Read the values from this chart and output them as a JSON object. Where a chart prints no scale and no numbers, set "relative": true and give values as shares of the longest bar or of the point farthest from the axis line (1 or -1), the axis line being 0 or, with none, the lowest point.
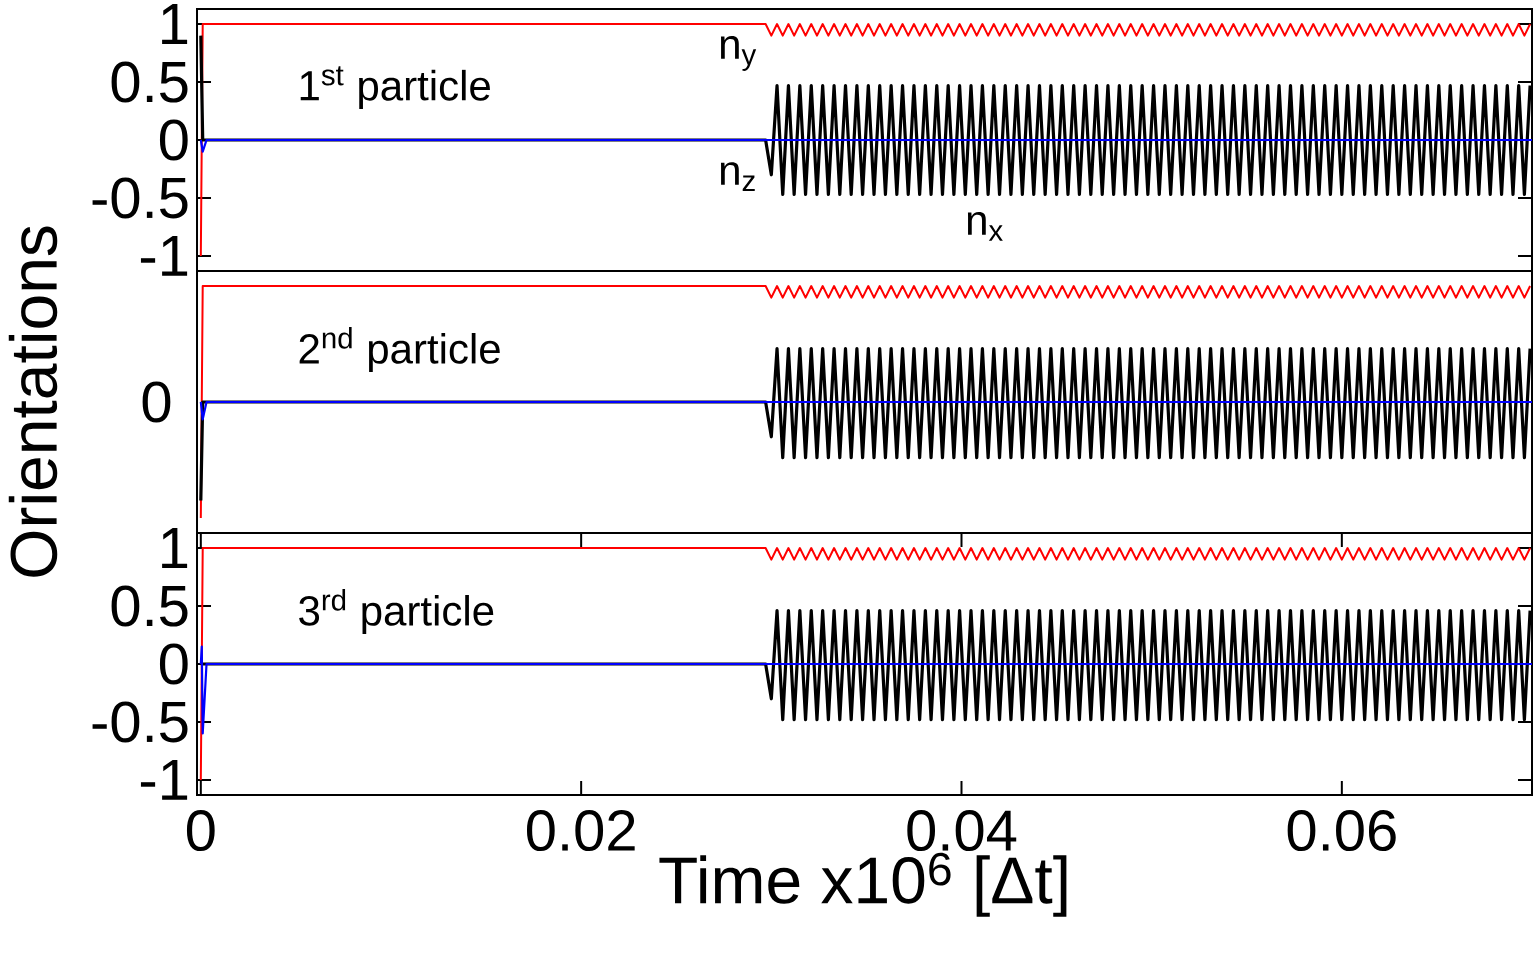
{
  "chart_data": [
    {
      "type": "line",
      "annotations": [
        "1$^{st}$ particle"
      ],
      "xlim": [
        -0.0002,
        0.07
      ],
      "ylim": [
        -1.13,
        1.13
      ],
      "yticks": [
        -1,
        -0.5,
        0,
        0.5,
        1
      ],
      "tick_labels": "y",
      "x": [
        0,
        0.0001,
        0.0003,
        0.0008,
        0.01,
        0.02,
        0.0297,
        0.03,
        0.0303,
        0.0306,
        0.0309,
        0.0312,
        0.0315,
        0.0318,
        0.0321,
        0.0324,
        0.0327,
        0.033,
        0.0333,
        0.0336,
        0.0339,
        0.0342,
        0.0345,
        0.0348,
        0.0351,
        0.0354,
        0.0357,
        0.036,
        0.0363,
        0.0366,
        0.0369,
        0.0372,
        0.0375,
        0.0378,
        0.0381,
        0.0384,
        0.0387,
        0.039,
        0.0393,
        0.0396,
        0.0399,
        0.0402,
        0.0405,
        0.0408,
        0.0411,
        0.0414,
        0.0417,
        0.042,
        0.0423,
        0.0426,
        0.0429,
        0.0432,
        0.0435,
        0.0438,
        0.0441,
        0.0444,
        0.0447,
        0.045,
        0.0453,
        0.0456,
        0.0459,
        0.0462,
        0.0465,
        0.0468,
        0.0471,
        0.0474,
        0.0477,
        0.048,
        0.0483,
        0.0486,
        0.0489,
        0.0492,
        0.0495,
        0.0498,
        0.0501,
        0.0504,
        0.0507,
        0.051,
        0.0513,
        0.0516,
        0.0519,
        0.0522,
        0.0525,
        0.0528,
        0.0531,
        0.0534,
        0.0537,
        0.054,
        0.0543,
        0.0546,
        0.0549,
        0.0552,
        0.0555,
        0.0558,
        0.0561,
        0.0564,
        0.0567,
        0.057,
        0.0573,
        0.0576,
        0.0579,
        0.0582,
        0.0585,
        0.0588,
        0.0591,
        0.0594,
        0.0597,
        0.06,
        0.0603,
        0.0606,
        0.0609,
        0.0612,
        0.0615,
        0.0618,
        0.0621,
        0.0624,
        0.0627,
        0.063,
        0.0633,
        0.0636,
        0.0639,
        0.0642,
        0.0645,
        0.0648,
        0.0651,
        0.0654,
        0.0657,
        0.066,
        0.0663,
        0.0666,
        0.0669,
        0.0672,
        0.0675,
        0.0678,
        0.0681,
        0.0684,
        0.0687,
        0.069,
        0.0693,
        0.0696,
        0.0699
      ],
      "series": [
        {
          "name": "n$_{y}$",
          "color": "#ff0000",
          "values": [
            -1,
            1,
            1,
            1,
            1,
            1,
            1,
            0.9,
            1,
            0.9,
            1,
            0.9,
            1,
            0.9,
            1,
            0.9,
            1,
            0.9,
            1,
            0.9,
            1,
            0.9,
            1,
            0.9,
            1,
            0.9,
            1,
            0.9,
            1,
            0.9,
            1,
            0.9,
            1,
            0.9,
            1,
            0.9,
            1,
            0.9,
            1,
            0.9,
            1,
            0.9,
            1,
            0.9,
            1,
            0.9,
            1,
            0.9,
            1,
            0.9,
            1,
            0.9,
            1,
            0.9,
            1,
            0.9,
            1,
            0.9,
            1,
            0.9,
            1,
            0.9,
            1,
            0.9,
            1,
            0.9,
            1,
            0.9,
            1,
            0.9,
            1,
            0.9,
            1,
            0.9,
            1,
            0.9,
            1,
            0.9,
            1,
            0.9,
            1,
            0.9,
            1,
            0.9,
            1,
            0.9,
            1,
            0.9,
            1,
            0.9,
            1,
            0.9,
            1,
            0.9,
            1,
            0.9,
            1,
            0.9,
            1,
            0.9,
            1,
            0.9,
            1,
            0.9,
            1,
            0.9,
            1,
            0.9,
            1,
            0.9,
            1,
            0.9,
            1,
            0.9,
            1,
            0.9,
            1,
            0.9,
            1,
            0.9,
            1,
            0.9,
            1,
            0.9,
            1,
            0.9,
            1,
            0.9,
            1,
            0.9,
            1,
            0.9,
            1,
            0.9,
            1,
            0.9,
            1,
            0.9,
            1,
            0.9,
            1
          ]
        },
        {
          "name": "n$_{x}$",
          "color": "#000000",
          "values": [
            0.9,
            0,
            0,
            0,
            0,
            0,
            0,
            -0.3,
            0.47,
            -0.47,
            0.47,
            -0.47,
            0.47,
            -0.47,
            0.47,
            -0.47,
            0.47,
            -0.47,
            0.47,
            -0.47,
            0.47,
            -0.47,
            0.47,
            -0.47,
            0.47,
            -0.47,
            0.47,
            -0.47,
            0.47,
            -0.47,
            0.47,
            -0.47,
            0.47,
            -0.47,
            0.47,
            -0.47,
            0.47,
            -0.47,
            0.47,
            -0.47,
            0.47,
            -0.47,
            0.47,
            -0.47,
            0.47,
            -0.47,
            0.47,
            -0.47,
            0.47,
            -0.47,
            0.47,
            -0.47,
            0.47,
            -0.47,
            0.47,
            -0.47,
            0.47,
            -0.47,
            0.47,
            -0.47,
            0.47,
            -0.47,
            0.47,
            -0.47,
            0.47,
            -0.47,
            0.47,
            -0.47,
            0.47,
            -0.47,
            0.47,
            -0.47,
            0.47,
            -0.47,
            0.47,
            -0.47,
            0.47,
            -0.47,
            0.47,
            -0.47,
            0.47,
            -0.47,
            0.47,
            -0.47,
            0.47,
            -0.47,
            0.47,
            -0.47,
            0.47,
            -0.47,
            0.47,
            -0.47,
            0.47,
            -0.47,
            0.47,
            -0.47,
            0.47,
            -0.47,
            0.47,
            -0.47,
            0.47,
            -0.47,
            0.47,
            -0.47,
            0.47,
            -0.47,
            0.47,
            -0.47,
            0.47,
            -0.47,
            0.47,
            -0.47,
            0.47,
            -0.47,
            0.47,
            -0.47,
            0.47,
            -0.47,
            0.47,
            -0.47,
            0.47,
            -0.47,
            0.47,
            -0.47,
            0.47,
            -0.47,
            0.47,
            -0.47,
            0.47,
            -0.47,
            0.47,
            -0.47,
            0.47,
            -0.47,
            0.47,
            -0.47,
            0.47,
            -0.47,
            0.47,
            -0.47,
            0.47
          ]
        },
        {
          "name": "n$_{z}$",
          "color": "#0000ff",
          "x": [
            0,
            0.0001,
            0.0003,
            0.07
          ],
          "values": [
            0,
            -0.1,
            0,
            0
          ]
        }
      ]
    },
    {
      "type": "line",
      "annotations": [
        "2$^{nd}$ particle",
        "0"
      ],
      "ylabel": "Orientations",
      "xlim": [
        -0.0002,
        0.07
      ],
      "relative": true,
      "tick_labels": false,
      "x": [
        0,
        0.0001,
        0.0003,
        0.0008,
        0.01,
        0.02,
        0.0297,
        0.03,
        0.0303,
        0.0306,
        0.0309,
        0.0312,
        0.0315,
        0.0318,
        0.0321,
        0.0324,
        0.0327,
        0.033,
        0.0333,
        0.0336,
        0.0339,
        0.0342,
        0.0345,
        0.0348,
        0.0351,
        0.0354,
        0.0357,
        0.036,
        0.0363,
        0.0366,
        0.0369,
        0.0372,
        0.0375,
        0.0378,
        0.0381,
        0.0384,
        0.0387,
        0.039,
        0.0393,
        0.0396,
        0.0399,
        0.0402,
        0.0405,
        0.0408,
        0.0411,
        0.0414,
        0.0417,
        0.042,
        0.0423,
        0.0426,
        0.0429,
        0.0432,
        0.0435,
        0.0438,
        0.0441,
        0.0444,
        0.0447,
        0.045,
        0.0453,
        0.0456,
        0.0459,
        0.0462,
        0.0465,
        0.0468,
        0.0471,
        0.0474,
        0.0477,
        0.048,
        0.0483,
        0.0486,
        0.0489,
        0.0492,
        0.0495,
        0.0498,
        0.0501,
        0.0504,
        0.0507,
        0.051,
        0.0513,
        0.0516,
        0.0519,
        0.0522,
        0.0525,
        0.0528,
        0.0531,
        0.0534,
        0.0537,
        0.054,
        0.0543,
        0.0546,
        0.0549,
        0.0552,
        0.0555,
        0.0558,
        0.0561,
        0.0564,
        0.0567,
        0.057,
        0.0573,
        0.0576,
        0.0579,
        0.0582,
        0.0585,
        0.0588,
        0.0591,
        0.0594,
        0.0597,
        0.06,
        0.0603,
        0.0606,
        0.0609,
        0.0612,
        0.0615,
        0.0618,
        0.0621,
        0.0624,
        0.0627,
        0.063,
        0.0633,
        0.0636,
        0.0639,
        0.0642,
        0.0645,
        0.0648,
        0.0651,
        0.0654,
        0.0657,
        0.066,
        0.0663,
        0.0666,
        0.0669,
        0.0672,
        0.0675,
        0.0678,
        0.0681,
        0.0684,
        0.0687,
        0.069,
        0.0693,
        0.0696,
        0.0699
      ],
      "series": [
        {
          "color": "#ff0000",
          "values": [
            -1,
            1,
            1,
            1,
            1,
            1,
            1,
            0.9,
            1,
            0.9,
            1,
            0.9,
            1,
            0.9,
            1,
            0.9,
            1,
            0.9,
            1,
            0.9,
            1,
            0.9,
            1,
            0.9,
            1,
            0.9,
            1,
            0.9,
            1,
            0.9,
            1,
            0.9,
            1,
            0.9,
            1,
            0.9,
            1,
            0.9,
            1,
            0.9,
            1,
            0.9,
            1,
            0.9,
            1,
            0.9,
            1,
            0.9,
            1,
            0.9,
            1,
            0.9,
            1,
            0.9,
            1,
            0.9,
            1,
            0.9,
            1,
            0.9,
            1,
            0.9,
            1,
            0.9,
            1,
            0.9,
            1,
            0.9,
            1,
            0.9,
            1,
            0.9,
            1,
            0.9,
            1,
            0.9,
            1,
            0.9,
            1,
            0.9,
            1,
            0.9,
            1,
            0.9,
            1,
            0.9,
            1,
            0.9,
            1,
            0.9,
            1,
            0.9,
            1,
            0.9,
            1,
            0.9,
            1,
            0.9,
            1,
            0.9,
            1,
            0.9,
            1,
            0.9,
            1,
            0.9,
            1,
            0.9,
            1,
            0.9,
            1,
            0.9,
            1,
            0.9,
            1,
            0.9,
            1,
            0.9,
            1,
            0.9,
            1,
            0.9,
            1,
            0.9,
            1,
            0.9,
            1,
            0.9,
            1,
            0.9,
            1,
            0.9,
            1,
            0.9,
            1,
            0.9,
            1,
            0.9,
            1,
            0.9,
            1
          ]
        },
        {
          "color": "#000000",
          "values": [
            -0.85,
            0,
            0,
            0,
            0,
            0,
            0,
            -0.3,
            0.46,
            -0.48,
            0.46,
            -0.48,
            0.46,
            -0.48,
            0.46,
            -0.48,
            0.46,
            -0.48,
            0.46,
            -0.48,
            0.46,
            -0.48,
            0.46,
            -0.48,
            0.46,
            -0.48,
            0.46,
            -0.48,
            0.46,
            -0.48,
            0.46,
            -0.48,
            0.46,
            -0.48,
            0.46,
            -0.48,
            0.46,
            -0.48,
            0.46,
            -0.48,
            0.46,
            -0.48,
            0.46,
            -0.48,
            0.46,
            -0.48,
            0.46,
            -0.48,
            0.46,
            -0.48,
            0.46,
            -0.48,
            0.46,
            -0.48,
            0.46,
            -0.48,
            0.46,
            -0.48,
            0.46,
            -0.48,
            0.46,
            -0.48,
            0.46,
            -0.48,
            0.46,
            -0.48,
            0.46,
            -0.48,
            0.46,
            -0.48,
            0.46,
            -0.48,
            0.46,
            -0.48,
            0.46,
            -0.48,
            0.46,
            -0.48,
            0.46,
            -0.48,
            0.46,
            -0.48,
            0.46,
            -0.48,
            0.46,
            -0.48,
            0.46,
            -0.48,
            0.46,
            -0.48,
            0.46,
            -0.48,
            0.46,
            -0.48,
            0.46,
            -0.48,
            0.46,
            -0.48,
            0.46,
            -0.48,
            0.46,
            -0.48,
            0.46,
            -0.48,
            0.46,
            -0.48,
            0.46,
            -0.48,
            0.46,
            -0.48,
            0.46,
            -0.48,
            0.46,
            -0.48,
            0.46,
            -0.48,
            0.46,
            -0.48,
            0.46,
            -0.48,
            0.46,
            -0.48,
            0.46,
            -0.48,
            0.46,
            -0.48,
            0.46,
            -0.48,
            0.46,
            -0.48,
            0.46,
            -0.48,
            0.46,
            -0.48,
            0.46,
            -0.48,
            0.46,
            -0.48,
            0.46,
            -0.48,
            0.46
          ]
        },
        {
          "color": "#0000ff",
          "x": [
            0,
            0.0001,
            0.0003,
            0.07
          ],
          "values": [
            0,
            -0.15,
            0,
            0
          ]
        }
      ]
    },
    {
      "type": "line",
      "annotations": [
        "3$^{rd}$ particle"
      ],
      "xlabel": "Time x10$^{6}$ [Δt]",
      "xlim": [
        -0.0002,
        0.07
      ],
      "ylim": [
        -1.13,
        1.13
      ],
      "xticks": [
        0,
        0.02,
        0.04,
        0.06
      ],
      "yticks": [
        -1,
        -0.5,
        0,
        0.5,
        1
      ],
      "x": [
        0,
        0.0001,
        0.0003,
        0.0008,
        0.01,
        0.02,
        0.0297,
        0.03,
        0.0303,
        0.0306,
        0.0309,
        0.0312,
        0.0315,
        0.0318,
        0.0321,
        0.0324,
        0.0327,
        0.033,
        0.0333,
        0.0336,
        0.0339,
        0.0342,
        0.0345,
        0.0348,
        0.0351,
        0.0354,
        0.0357,
        0.036,
        0.0363,
        0.0366,
        0.0369,
        0.0372,
        0.0375,
        0.0378,
        0.0381,
        0.0384,
        0.0387,
        0.039,
        0.0393,
        0.0396,
        0.0399,
        0.0402,
        0.0405,
        0.0408,
        0.0411,
        0.0414,
        0.0417,
        0.042,
        0.0423,
        0.0426,
        0.0429,
        0.0432,
        0.0435,
        0.0438,
        0.0441,
        0.0444,
        0.0447,
        0.045,
        0.0453,
        0.0456,
        0.0459,
        0.0462,
        0.0465,
        0.0468,
        0.0471,
        0.0474,
        0.0477,
        0.048,
        0.0483,
        0.0486,
        0.0489,
        0.0492,
        0.0495,
        0.0498,
        0.0501,
        0.0504,
        0.0507,
        0.051,
        0.0513,
        0.0516,
        0.0519,
        0.0522,
        0.0525,
        0.0528,
        0.0531,
        0.0534,
        0.0537,
        0.054,
        0.0543,
        0.0546,
        0.0549,
        0.0552,
        0.0555,
        0.0558,
        0.0561,
        0.0564,
        0.0567,
        0.057,
        0.0573,
        0.0576,
        0.0579,
        0.0582,
        0.0585,
        0.0588,
        0.0591,
        0.0594,
        0.0597,
        0.06,
        0.0603,
        0.0606,
        0.0609,
        0.0612,
        0.0615,
        0.0618,
        0.0621,
        0.0624,
        0.0627,
        0.063,
        0.0633,
        0.0636,
        0.0639,
        0.0642,
        0.0645,
        0.0648,
        0.0651,
        0.0654,
        0.0657,
        0.066,
        0.0663,
        0.0666,
        0.0669,
        0.0672,
        0.0675,
        0.0678,
        0.0681,
        0.0684,
        0.0687,
        0.069,
        0.0693,
        0.0696,
        0.0699
      ],
      "series": [
        {
          "color": "#ff0000",
          "values": [
            -1,
            1,
            1,
            1,
            1,
            1,
            1,
            0.9,
            1,
            0.9,
            1,
            0.9,
            1,
            0.9,
            1,
            0.9,
            1,
            0.9,
            1,
            0.9,
            1,
            0.9,
            1,
            0.9,
            1,
            0.9,
            1,
            0.9,
            1,
            0.9,
            1,
            0.9,
            1,
            0.9,
            1,
            0.9,
            1,
            0.9,
            1,
            0.9,
            1,
            0.9,
            1,
            0.9,
            1,
            0.9,
            1,
            0.9,
            1,
            0.9,
            1,
            0.9,
            1,
            0.9,
            1,
            0.9,
            1,
            0.9,
            1,
            0.9,
            1,
            0.9,
            1,
            0.9,
            1,
            0.9,
            1,
            0.9,
            1,
            0.9,
            1,
            0.9,
            1,
            0.9,
            1,
            0.9,
            1,
            0.9,
            1,
            0.9,
            1,
            0.9,
            1,
            0.9,
            1,
            0.9,
            1,
            0.9,
            1,
            0.9,
            1,
            0.9,
            1,
            0.9,
            1,
            0.9,
            1,
            0.9,
            1,
            0.9,
            1,
            0.9,
            1,
            0.9,
            1,
            0.9,
            1,
            0.9,
            1,
            0.9,
            1,
            0.9,
            1,
            0.9,
            1,
            0.9,
            1,
            0.9,
            1,
            0.9,
            1,
            0.9,
            1,
            0.9,
            1,
            0.9,
            1,
            0.9,
            1,
            0.9,
            1,
            0.9,
            1,
            0.9,
            1,
            0.9,
            1,
            0.9,
            1,
            0.9,
            1
          ]
        },
        {
          "color": "#000000",
          "values": [
            0,
            0,
            0,
            0,
            0,
            0,
            0,
            -0.3,
            0.46,
            -0.48,
            0.46,
            -0.48,
            0.46,
            -0.48,
            0.46,
            -0.48,
            0.46,
            -0.48,
            0.46,
            -0.48,
            0.46,
            -0.48,
            0.46,
            -0.48,
            0.46,
            -0.48,
            0.46,
            -0.48,
            0.46,
            -0.48,
            0.46,
            -0.48,
            0.46,
            -0.48,
            0.46,
            -0.48,
            0.46,
            -0.48,
            0.46,
            -0.48,
            0.46,
            -0.48,
            0.46,
            -0.48,
            0.46,
            -0.48,
            0.46,
            -0.48,
            0.46,
            -0.48,
            0.46,
            -0.48,
            0.46,
            -0.48,
            0.46,
            -0.48,
            0.46,
            -0.48,
            0.46,
            -0.48,
            0.46,
            -0.48,
            0.46,
            -0.48,
            0.46,
            -0.48,
            0.46,
            -0.48,
            0.46,
            -0.48,
            0.46,
            -0.48,
            0.46,
            -0.48,
            0.46,
            -0.48,
            0.46,
            -0.48,
            0.46,
            -0.48,
            0.46,
            -0.48,
            0.46,
            -0.48,
            0.46,
            -0.48,
            0.46,
            -0.48,
            0.46,
            -0.48,
            0.46,
            -0.48,
            0.46,
            -0.48,
            0.46,
            -0.48,
            0.46,
            -0.48,
            0.46,
            -0.48,
            0.46,
            -0.48,
            0.46,
            -0.48,
            0.46,
            -0.48,
            0.46,
            -0.48,
            0.46,
            -0.48,
            0.46,
            -0.48,
            0.46,
            -0.48,
            0.46,
            -0.48,
            0.46,
            -0.48,
            0.46,
            -0.48,
            0.46,
            -0.48,
            0.46,
            -0.48,
            0.46,
            -0.48,
            0.46,
            -0.48,
            0.46,
            -0.48,
            0.46,
            -0.48,
            0.46,
            -0.48,
            0.46,
            -0.48,
            0.46,
            -0.48,
            0.46,
            -0.48,
            0.46
          ]
        },
        {
          "color": "#0000ff",
          "x": [
            0,
            5e-05,
            0.0001,
            0.0003,
            0.07
          ],
          "values": [
            0,
            0.15,
            -0.6,
            0,
            0
          ]
        }
      ]
    }
  ]
}
